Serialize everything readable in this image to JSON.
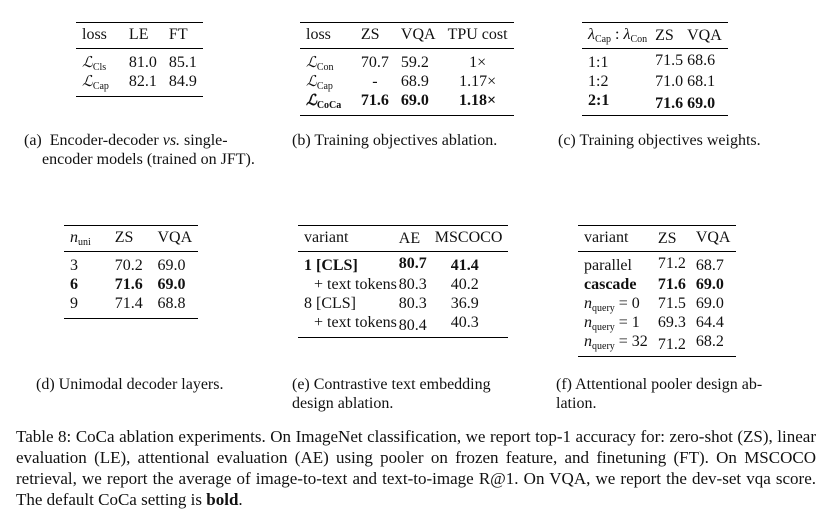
{
  "table_a": {
    "headers": [
      "loss",
      "LE",
      "FT"
    ],
    "rows": [
      {
        "loss_sub": "Cls",
        "le": "81.0",
        "ft": "85.1"
      },
      {
        "loss_sub": "Cap",
        "le": "82.1",
        "ft": "84.9"
      }
    ],
    "caption_lines": [
      "(a) Encoder-decoder vs. single-",
      "encoder models (trained on JFT)."
    ],
    "caption_label": "(a)",
    "caption_pre": "Encoder-decoder",
    "caption_vs": "vs.",
    "caption_post": "single-",
    "caption_line2": "encoder models (trained on JFT)."
  },
  "table_b": {
    "headers": [
      "loss",
      "ZS",
      "VQA",
      "TPU cost"
    ],
    "rows": [
      {
        "loss_sub": "Con",
        "zs": "70.7",
        "vqa": "59.2",
        "cost": "1×"
      },
      {
        "loss_sub": "Cap",
        "zs": "-",
        "vqa": "68.9",
        "cost": "1.17×"
      },
      {
        "loss_sub": "CoCa",
        "zs": "71.6",
        "vqa": "69.0",
        "cost": "1.18×"
      }
    ],
    "caption": "(b) Training objectives ablation."
  },
  "table_c": {
    "header_lambda_cap": "Cap",
    "header_lambda_con": "Con",
    "headers": [
      "ZS",
      "VQA"
    ],
    "rows": [
      {
        "ratio": "1:1",
        "zs": "71.5",
        "vqa": "68.6"
      },
      {
        "ratio": "1:2",
        "zs": "71.0",
        "vqa": "68.1"
      },
      {
        "ratio": "2:1",
        "zs": "71.6",
        "vqa": "69.0"
      }
    ],
    "caption": "(c) Training objectives weights."
  },
  "table_d": {
    "header_n_sub": "uni",
    "headers": [
      "ZS",
      "VQA"
    ],
    "rows": [
      {
        "n": "3",
        "zs": "70.2",
        "vqa": "69.0"
      },
      {
        "n": "6",
        "zs": "71.6",
        "vqa": "69.0"
      },
      {
        "n": "9",
        "zs": "71.4",
        "vqa": "68.8"
      }
    ],
    "caption": "(d) Unimodal decoder layers."
  },
  "table_e": {
    "headers": [
      "variant",
      "AE",
      "MSCOCO"
    ],
    "rows": [
      {
        "variant": "1 [CLS]",
        "ae": "80.7",
        "mscoco": "41.4"
      },
      {
        "variant": "+ text tokens",
        "ae": "80.3",
        "mscoco": "40.2"
      },
      {
        "variant": "8 [CLS]",
        "ae": "80.3",
        "mscoco": "36.9"
      },
      {
        "variant": "+ text tokens",
        "ae": "80.4",
        "mscoco": "40.3"
      }
    ],
    "caption_line1": "(e) Contrastive text embedding",
    "caption_line2": "design ablation."
  },
  "table_f": {
    "headers": [
      "variant",
      "ZS",
      "VQA"
    ],
    "rows": [
      {
        "variant": "parallel",
        "zs": "71.2",
        "vqa": "68.7"
      },
      {
        "variant": "cascade",
        "zs": "71.6",
        "vqa": "69.0"
      }
    ],
    "query_sub": "query",
    "query_rows": [
      {
        "eq": "= 0",
        "zs": "71.5",
        "vqa": "69.0"
      },
      {
        "eq": "= 1",
        "zs": "69.3",
        "vqa": "64.4"
      },
      {
        "eq": "= 32",
        "zs": "71.2",
        "vqa": "68.2"
      }
    ],
    "caption_line1": "(f) Attentional pooler design ab-",
    "caption_line2": "lation."
  },
  "main_caption": {
    "text": "Table 8: CoCa ablation experiments. On ImageNet classification, we report top-1 accuracy for: zero-shot (ZS), linear evaluation (LE), attentional evaluation (AE) using pooler on frozen feature, and finetuning (FT). On MSCOCO retrieval, we report the average of image-to-text and text-to-image R@1. On VQA, we report the dev-set vqa score. The default CoCa setting is",
    "bold_word": "bold",
    "end": "."
  },
  "symbols": {
    "script_L": "ℒ",
    "lambda": "λ",
    "n": "n",
    "colon": ":"
  }
}
